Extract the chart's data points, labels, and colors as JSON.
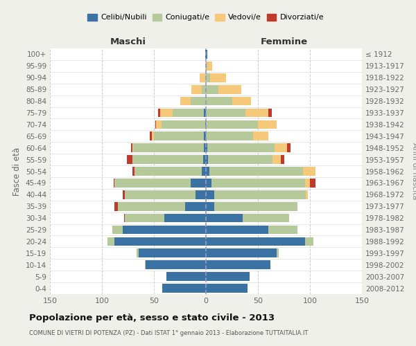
{
  "age_groups": [
    "0-4",
    "5-9",
    "10-14",
    "15-19",
    "20-24",
    "25-29",
    "30-34",
    "35-39",
    "40-44",
    "45-49",
    "50-54",
    "55-59",
    "60-64",
    "65-69",
    "70-74",
    "75-79",
    "80-84",
    "85-89",
    "90-94",
    "95-99",
    "100+"
  ],
  "birth_years": [
    "2008-2012",
    "2003-2007",
    "1998-2002",
    "1993-1997",
    "1988-1992",
    "1983-1987",
    "1978-1982",
    "1973-1977",
    "1968-1972",
    "1963-1967",
    "1958-1962",
    "1953-1957",
    "1948-1952",
    "1943-1947",
    "1938-1942",
    "1933-1937",
    "1928-1932",
    "1923-1927",
    "1918-1922",
    "1913-1917",
    "≤ 1912"
  ],
  "male": {
    "single": [
      42,
      38,
      58,
      65,
      88,
      80,
      40,
      20,
      10,
      15,
      4,
      3,
      2,
      2,
      1,
      2,
      0,
      0,
      0,
      0,
      1
    ],
    "married": [
      0,
      0,
      1,
      2,
      7,
      10,
      38,
      65,
      68,
      73,
      65,
      68,
      68,
      48,
      42,
      30,
      15,
      4,
      1,
      0,
      0
    ],
    "widowed": [
      0,
      0,
      0,
      0,
      0,
      0,
      0,
      0,
      0,
      0,
      0,
      0,
      1,
      2,
      5,
      12,
      10,
      10,
      5,
      1,
      0
    ],
    "divorced": [
      0,
      0,
      0,
      0,
      0,
      0,
      1,
      3,
      2,
      1,
      2,
      5,
      1,
      2,
      1,
      2,
      0,
      0,
      0,
      0,
      0
    ]
  },
  "female": {
    "single": [
      40,
      42,
      62,
      68,
      95,
      60,
      35,
      8,
      8,
      5,
      3,
      2,
      1,
      0,
      0,
      0,
      0,
      0,
      0,
      0,
      1
    ],
    "married": [
      0,
      0,
      0,
      2,
      8,
      28,
      45,
      80,
      88,
      90,
      90,
      62,
      65,
      45,
      50,
      38,
      25,
      12,
      4,
      1,
      0
    ],
    "widowed": [
      0,
      0,
      0,
      0,
      0,
      0,
      0,
      0,
      2,
      5,
      12,
      8,
      12,
      15,
      18,
      22,
      18,
      22,
      15,
      5,
      0
    ],
    "divorced": [
      0,
      0,
      0,
      0,
      0,
      0,
      0,
      0,
      0,
      5,
      0,
      3,
      3,
      0,
      0,
      3,
      0,
      0,
      0,
      0,
      0
    ]
  },
  "colors": {
    "single": "#3B72A4",
    "married": "#B5C99A",
    "widowed": "#F5C87A",
    "divorced": "#C0392B"
  },
  "legend_labels": [
    "Celibi/Nubili",
    "Coniugati/e",
    "Vedovi/e",
    "Divorziati/e"
  ],
  "xlim": 150,
  "title": "Popolazione per età, sesso e stato civile - 2013",
  "subtitle": "COMUNE DI VIETRI DI POTENZA (PZ) - Dati ISTAT 1° gennaio 2013 - Elaborazione TUTTAITALIA.IT",
  "ylabel_left": "Fasce di età",
  "ylabel_right": "Anni di nascita",
  "xlabel_male": "Maschi",
  "xlabel_female": "Femmine",
  "bg_color": "#f0f0eb",
  "plot_bg_color": "#ffffff"
}
